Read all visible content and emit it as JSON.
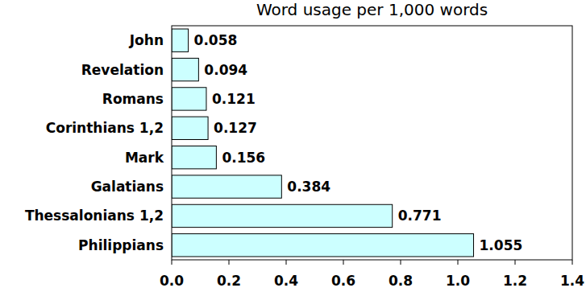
{
  "chart_data": {
    "type": "bar",
    "title": "Word usage per 1,000 words",
    "orientation": "horizontal",
    "categories": [
      "John",
      "Revelation",
      "Romans",
      "Corinthians 1,2",
      "Mark",
      "Galatians",
      "Thessalonians 1,2",
      "Philippians"
    ],
    "values": [
      0.058,
      0.094,
      0.121,
      0.127,
      0.156,
      0.384,
      0.771,
      1.055
    ],
    "color": "#ccffff",
    "xlim": [
      0,
      1.4
    ],
    "xticks": [
      {
        "value": 0,
        "label": "0.0"
      },
      0.2,
      0.4,
      0.6,
      0.8,
      {
        "value": 1,
        "label": "1.0"
      },
      1.2,
      1.4
    ],
    "data_labels": true,
    "grid": false
  }
}
